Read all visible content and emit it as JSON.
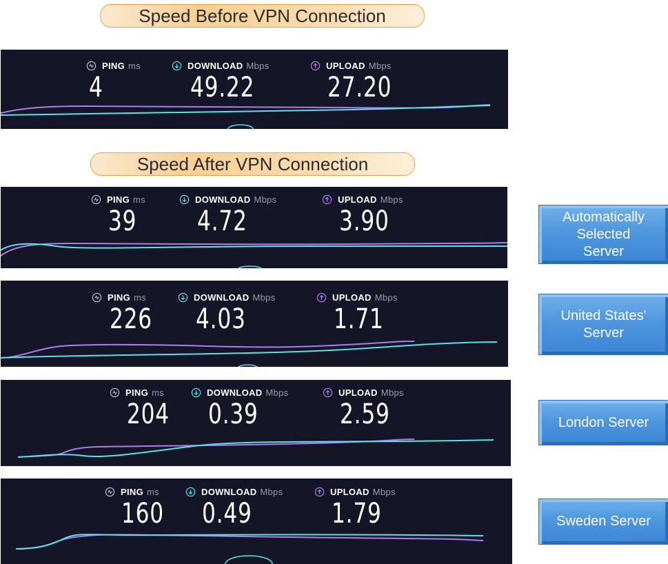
{
  "titles": {
    "before": "Speed Before VPN Connection",
    "after": "Speed After VPN Connection"
  },
  "labels": {
    "ping": "PING",
    "ping_unit": "ms",
    "download": "DOWNLOAD",
    "download_unit": "Mbps",
    "upload": "UPLOAD",
    "upload_unit": "Mbps"
  },
  "colors": {
    "panel_bg": "#141526",
    "download_accent": "#5ce1e6",
    "upload_accent": "#b07cf0",
    "ping_icon": "#c8c8d0",
    "button_blue": "#4a90d9",
    "banner_orange": "#f6cf95"
  },
  "icons": {
    "ping": "ping-icon",
    "download": "download-arrow-icon",
    "upload": "upload-arrow-icon"
  },
  "tests": [
    {
      "ping": "4",
      "download": "49.22",
      "upload": "27.20"
    },
    {
      "ping": "39",
      "download": "4.72",
      "upload": "3.90"
    },
    {
      "ping": "226",
      "download": "4.03",
      "upload": "1.71"
    },
    {
      "ping": "204",
      "download": "0.39",
      "upload": "2.59"
    },
    {
      "ping": "160",
      "download": "0.49",
      "upload": "1.79"
    }
  ],
  "servers": [
    "Automatically Selected Server",
    "United States' Server",
    "London Server",
    "Sweden Server"
  ]
}
